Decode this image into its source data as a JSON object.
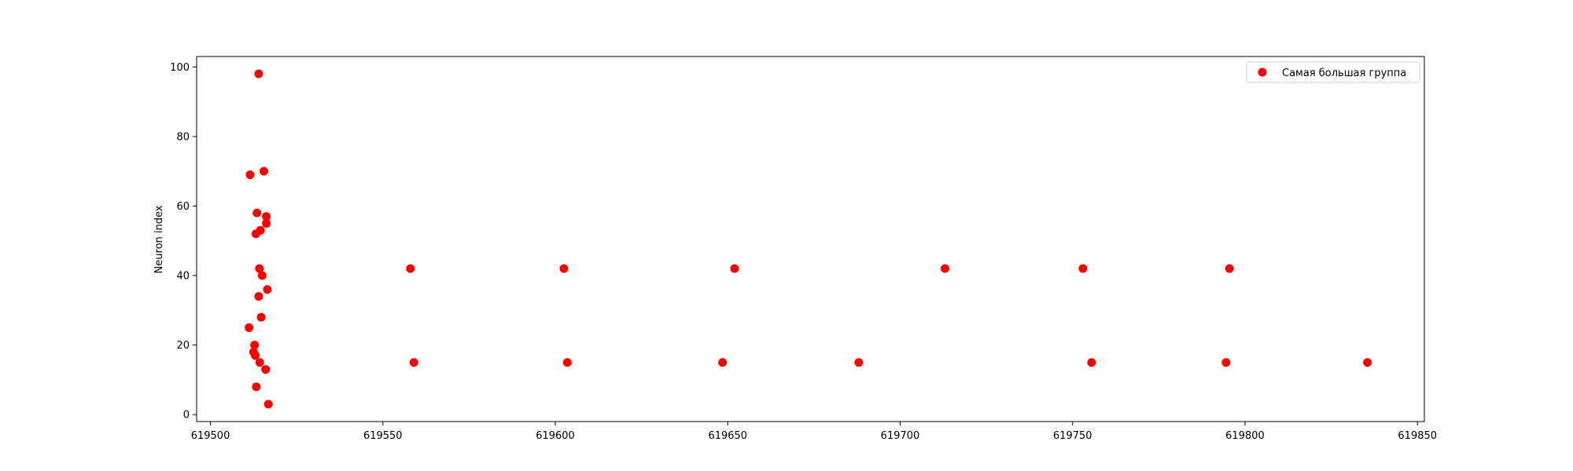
{
  "chart_data": {
    "type": "scatter",
    "title": "",
    "xlabel": "",
    "ylabel": "Neuron index",
    "xlim": [
      619496,
      619852
    ],
    "ylim": [
      -2,
      103
    ],
    "x_ticks": [
      619500,
      619550,
      619600,
      619650,
      619700,
      619750,
      619800,
      619850
    ],
    "y_ticks": [
      0,
      20,
      40,
      60,
      80,
      100
    ],
    "grid": false,
    "legend_position": "top-right",
    "series": [
      {
        "name": "Самая большая группа",
        "color": "#ff0000",
        "marker": "circle",
        "points": [
          {
            "x": 619514.0,
            "y": 98
          },
          {
            "x": 619515.5,
            "y": 70
          },
          {
            "x": 619511.5,
            "y": 69
          },
          {
            "x": 619513.5,
            "y": 58
          },
          {
            "x": 619516.2,
            "y": 57
          },
          {
            "x": 619516.2,
            "y": 55
          },
          {
            "x": 619514.5,
            "y": 53
          },
          {
            "x": 619513.2,
            "y": 52
          },
          {
            "x": 619514.2,
            "y": 42
          },
          {
            "x": 619515.0,
            "y": 40
          },
          {
            "x": 619516.5,
            "y": 36
          },
          {
            "x": 619514.0,
            "y": 34
          },
          {
            "x": 619514.7,
            "y": 28
          },
          {
            "x": 619511.2,
            "y": 25
          },
          {
            "x": 619512.8,
            "y": 20
          },
          {
            "x": 619512.5,
            "y": 18
          },
          {
            "x": 619513.0,
            "y": 17
          },
          {
            "x": 619514.3,
            "y": 15
          },
          {
            "x": 619516.0,
            "y": 13
          },
          {
            "x": 619513.3,
            "y": 8
          },
          {
            "x": 619516.8,
            "y": 3
          },
          {
            "x": 619558.0,
            "y": 42
          },
          {
            "x": 619559.0,
            "y": 15
          },
          {
            "x": 619602.5,
            "y": 42
          },
          {
            "x": 619603.5,
            "y": 15
          },
          {
            "x": 619648.5,
            "y": 15
          },
          {
            "x": 619652.0,
            "y": 42
          },
          {
            "x": 619688.0,
            "y": 15
          },
          {
            "x": 619713.0,
            "y": 42
          },
          {
            "x": 619753.0,
            "y": 42
          },
          {
            "x": 619755.5,
            "y": 15
          },
          {
            "x": 619794.5,
            "y": 15
          },
          {
            "x": 619795.5,
            "y": 42
          },
          {
            "x": 619835.5,
            "y": 15
          }
        ]
      }
    ]
  }
}
